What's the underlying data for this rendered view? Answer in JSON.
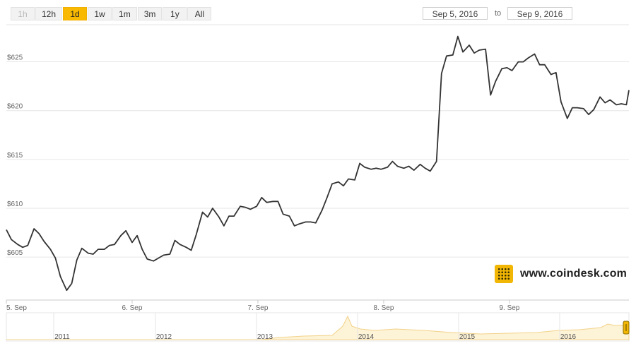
{
  "range_buttons": [
    {
      "label": "1h",
      "state": "disabled"
    },
    {
      "label": "12h",
      "state": "normal"
    },
    {
      "label": "1d",
      "state": "active"
    },
    {
      "label": "1w",
      "state": "normal"
    },
    {
      "label": "1m",
      "state": "normal"
    },
    {
      "label": "3m",
      "state": "normal"
    },
    {
      "label": "1y",
      "state": "normal"
    },
    {
      "label": "All",
      "state": "normal"
    }
  ],
  "date_range": {
    "from": "Sep 5, 2016",
    "to_label": "to",
    "to": "Sep 9, 2016"
  },
  "logo_text": "www.coindesk.com",
  "colors": {
    "line": "#333333",
    "active_button": "#f9b900",
    "navigator_fill": "#fdf3d6",
    "navigator_line": "#f2d28a",
    "grid": "#e6e6e6"
  },
  "chart_data": {
    "type": "line",
    "title": "",
    "xlabel": "",
    "ylabel": "",
    "ylim": [
      600.6,
      628.8
    ],
    "yticks": [
      605,
      610,
      615,
      620,
      625
    ],
    "ytick_labels": [
      "$605",
      "$610",
      "$615",
      "$620",
      "$625"
    ],
    "xlim": [
      5.0,
      9.95
    ],
    "xticks": [
      5,
      6,
      7,
      8,
      9
    ],
    "xtick_labels": [
      "5. Sep",
      "6. Sep",
      "7. Sep",
      "8. Sep",
      "9. Sep"
    ],
    "grid": true,
    "series": [
      {
        "x": [
          5.0,
          5.04,
          5.09,
          5.13,
          5.17,
          5.22,
          5.26,
          5.3,
          5.35,
          5.39,
          5.43,
          5.48,
          5.52,
          5.56,
          5.6,
          5.65,
          5.69,
          5.73,
          5.78,
          5.82,
          5.86,
          5.91,
          5.95,
          6.0,
          6.04,
          6.08,
          6.12,
          6.17,
          6.21,
          6.25,
          6.3,
          6.34,
          6.38,
          6.43,
          6.47,
          6.51,
          6.56,
          6.6,
          6.64,
          6.69,
          6.73,
          6.77,
          6.81,
          6.86,
          6.9,
          6.94,
          6.99,
          7.03,
          7.07,
          7.12,
          7.16,
          7.2,
          7.25,
          7.29,
          7.33,
          7.38,
          7.42,
          7.46,
          7.51,
          7.55,
          7.59,
          7.64,
          7.68,
          7.72,
          7.77,
          7.81,
          7.85,
          7.9,
          7.94,
          7.98,
          8.03,
          8.07,
          8.11,
          8.16,
          8.2,
          8.24,
          8.29,
          8.33,
          8.37,
          8.42,
          8.46,
          8.5,
          8.55,
          8.59,
          8.63,
          8.68,
          8.72,
          8.76,
          8.81,
          8.85,
          8.89,
          8.94,
          8.98,
          9.02,
          9.07,
          9.11,
          9.15,
          9.2,
          9.24,
          9.28,
          9.33,
          9.37,
          9.41,
          9.46,
          9.5,
          9.54,
          9.59,
          9.63,
          9.67,
          9.72,
          9.76,
          9.8,
          9.85,
          9.89,
          9.93,
          9.95
        ],
        "y": [
          607.8,
          606.8,
          606.3,
          606.0,
          606.2,
          607.9,
          607.4,
          606.6,
          605.8,
          604.9,
          603.0,
          601.6,
          602.3,
          604.7,
          605.9,
          605.4,
          605.3,
          605.8,
          605.8,
          606.2,
          606.3,
          607.2,
          607.7,
          606.5,
          607.2,
          605.8,
          604.8,
          604.6,
          604.9,
          605.2,
          605.3,
          606.7,
          606.3,
          606.0,
          605.7,
          607.3,
          609.6,
          609.1,
          610.0,
          609.1,
          608.2,
          609.2,
          609.2,
          610.2,
          610.1,
          609.9,
          610.2,
          611.1,
          610.6,
          610.7,
          610.7,
          609.4,
          609.2,
          608.2,
          608.4,
          608.6,
          608.6,
          608.5,
          609.8,
          611.1,
          612.5,
          612.7,
          612.3,
          613.0,
          612.9,
          614.6,
          614.2,
          614.0,
          614.1,
          614.0,
          614.2,
          614.8,
          614.3,
          614.1,
          614.3,
          613.9,
          614.5,
          614.1,
          613.8,
          614.8,
          623.8,
          625.6,
          625.7,
          627.6,
          626.0,
          626.7,
          625.9,
          626.2,
          626.3,
          621.6,
          623.0,
          624.3,
          624.4,
          624.1,
          625.0,
          625.0,
          625.4,
          625.8,
          624.7,
          624.7,
          623.7,
          623.9,
          620.9,
          619.2,
          620.3,
          620.3,
          620.2,
          619.6,
          620.1,
          621.4,
          620.8,
          621.1,
          620.6,
          620.7,
          620.6,
          622.1
        ]
      }
    ],
    "navigator": {
      "year_labels": [
        "2011",
        "2012",
        "2013",
        "2014",
        "2015",
        "2016"
      ]
    }
  }
}
